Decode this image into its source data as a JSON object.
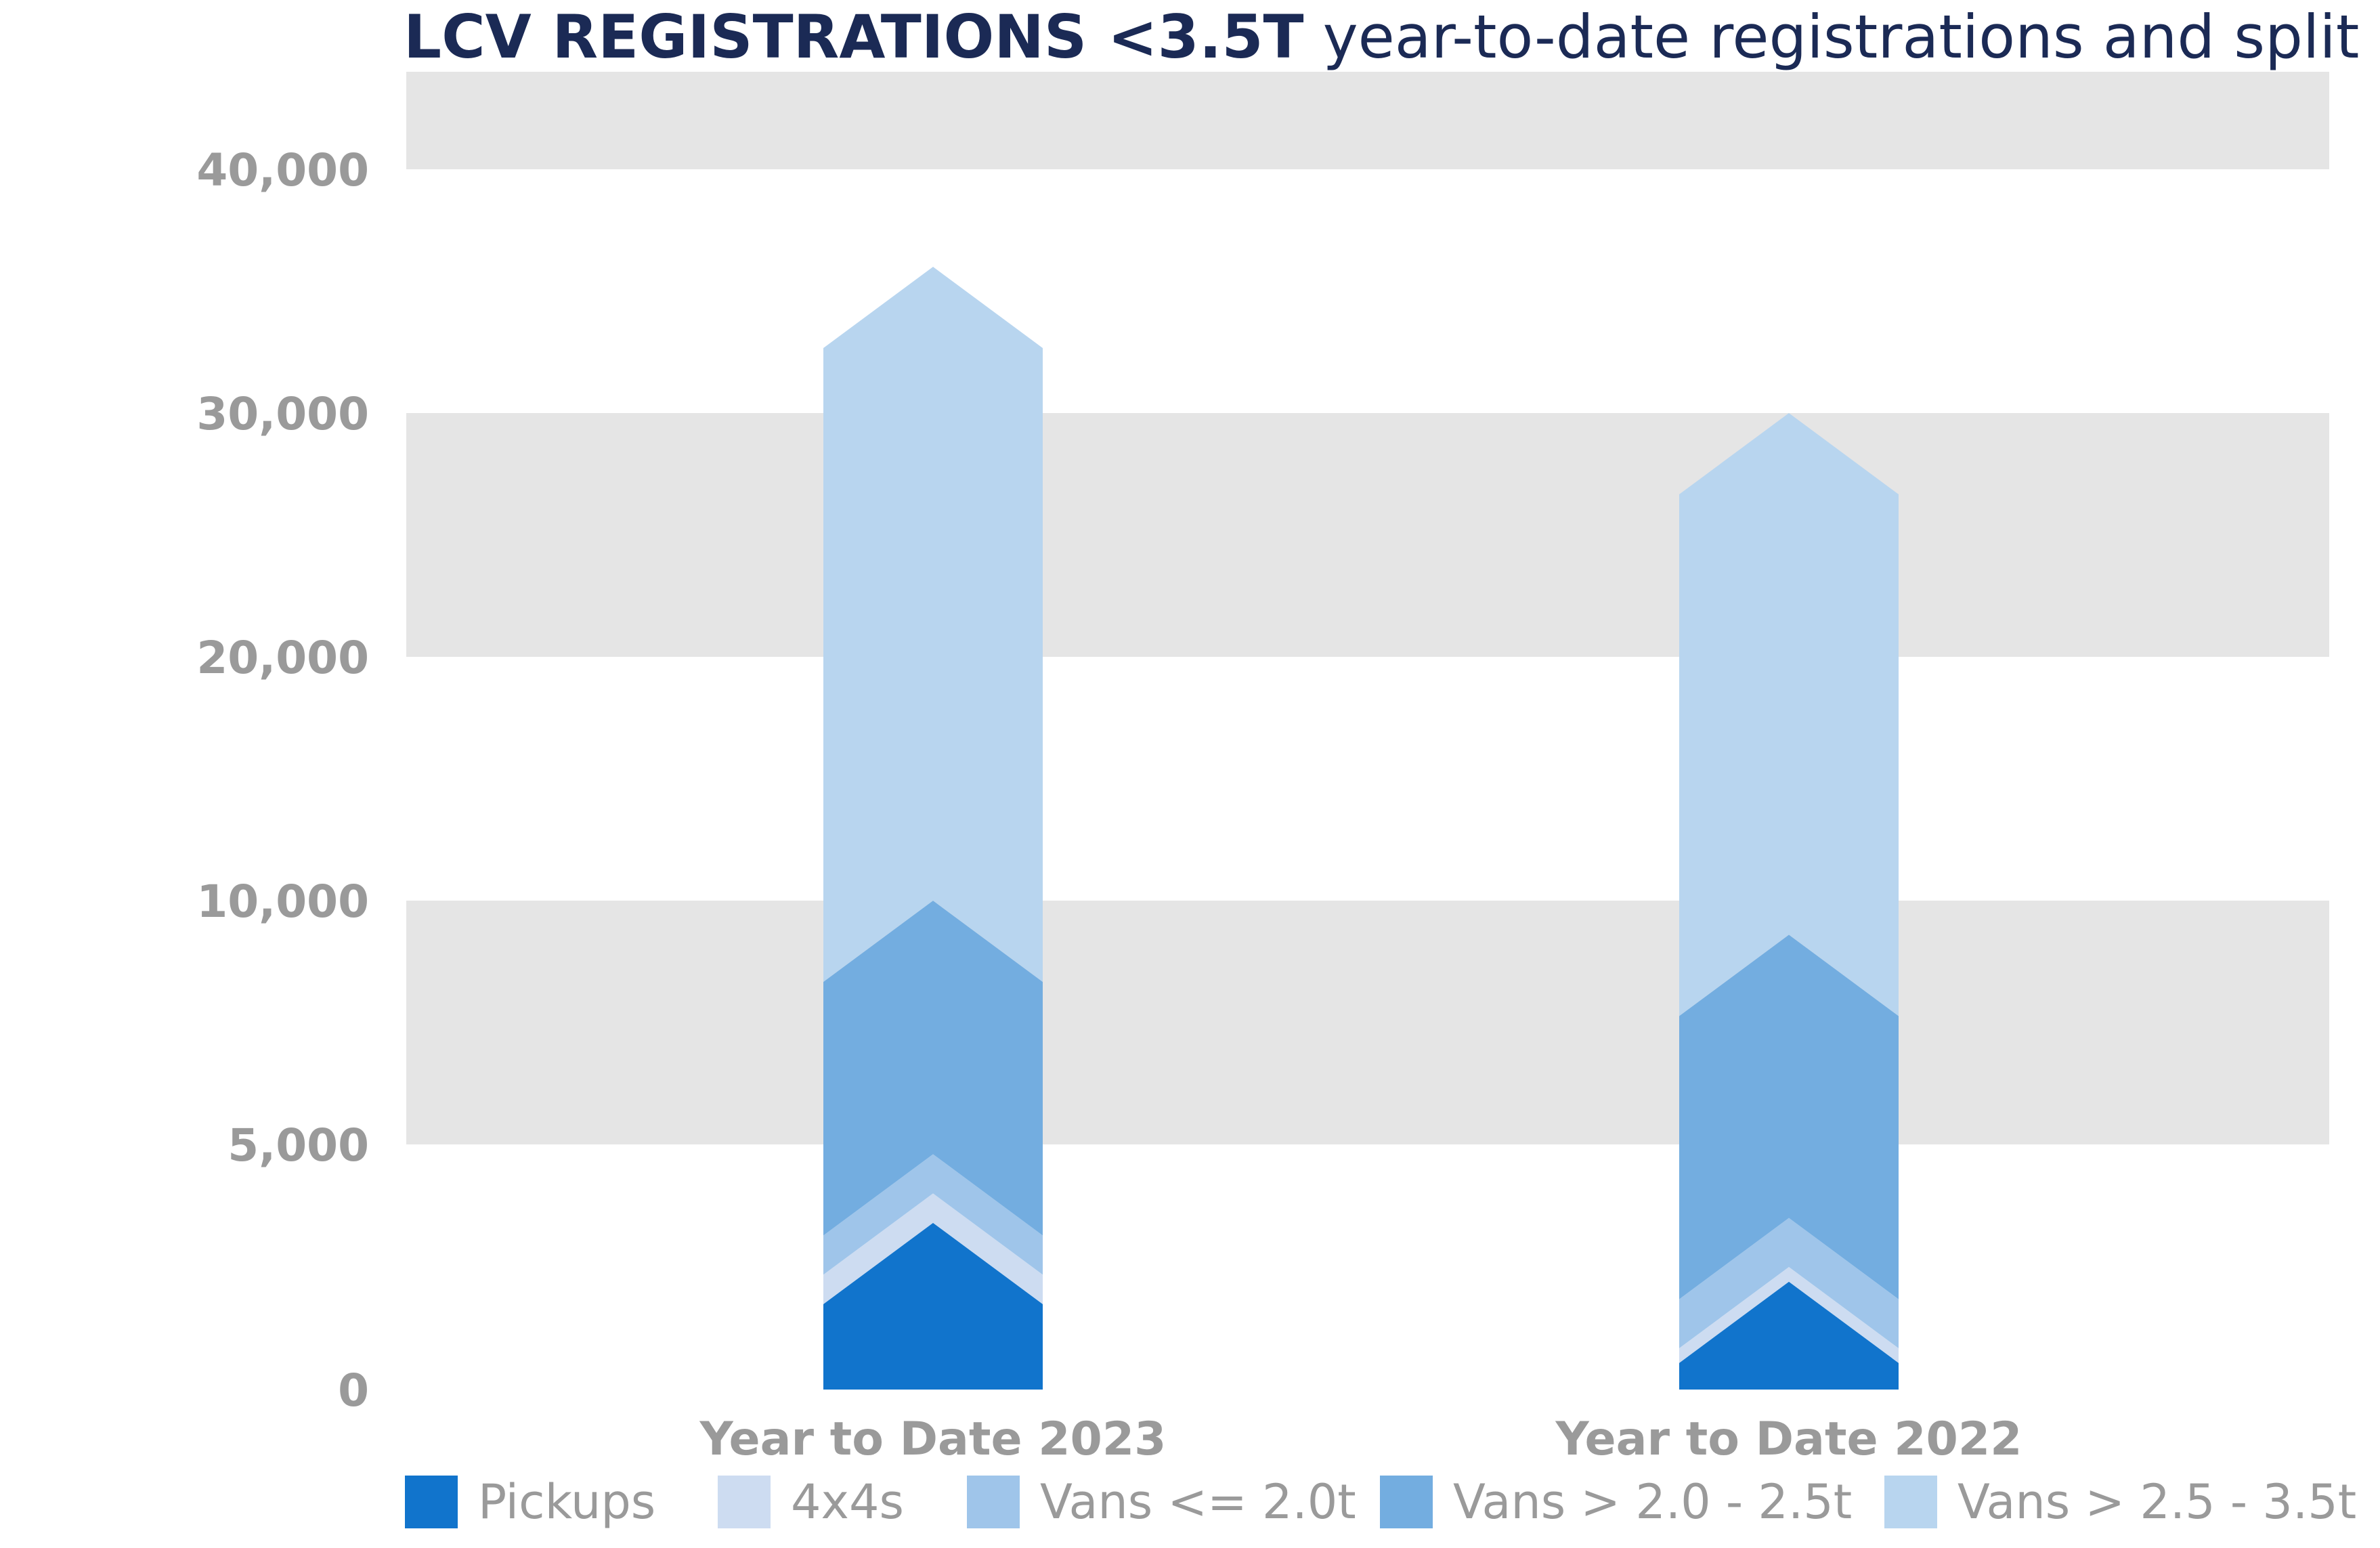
{
  "chart_data": {
    "type": "bar",
    "stacked": true,
    "title_bold": "LCV REGISTRATIONS <3.5T",
    "title_rest": "year-to-date registrations and split",
    "xlabel": "",
    "ylabel": "",
    "y_ticks": [
      0,
      5000,
      10000,
      20000,
      30000,
      40000
    ],
    "y_tick_labels": [
      "0",
      "5,000",
      "10,000",
      "20,000",
      "30,000",
      "40,000"
    ],
    "grid_bands": [
      [
        5000,
        10000
      ],
      [
        20000,
        30000
      ],
      [
        40000,
        44000
      ]
    ],
    "categories": [
      "Year to Date 2023",
      "Year to Date 2022"
    ],
    "series": [
      {
        "name": "Pickups",
        "color": "#1174cc",
        "values": [
          3400,
          2200
        ]
      },
      {
        "name": "4x4s",
        "color": "#cddcf1",
        "values": [
          600,
          300
        ]
      },
      {
        "name": "Vans <= 2.0t",
        "color": "#9fc5ea",
        "values": [
          800,
          1000
        ]
      },
      {
        "name": "Vans > 2.0 - 2.5t",
        "color": "#73ade0",
        "values": [
          5200,
          5800
        ]
      },
      {
        "name": "Vans > 2.5 - 3.5t",
        "color": "#b8d5ef",
        "values": [
          26000,
          20700
        ]
      }
    ],
    "band_color": "#e5e5e5",
    "legend_position": "bottom"
  }
}
